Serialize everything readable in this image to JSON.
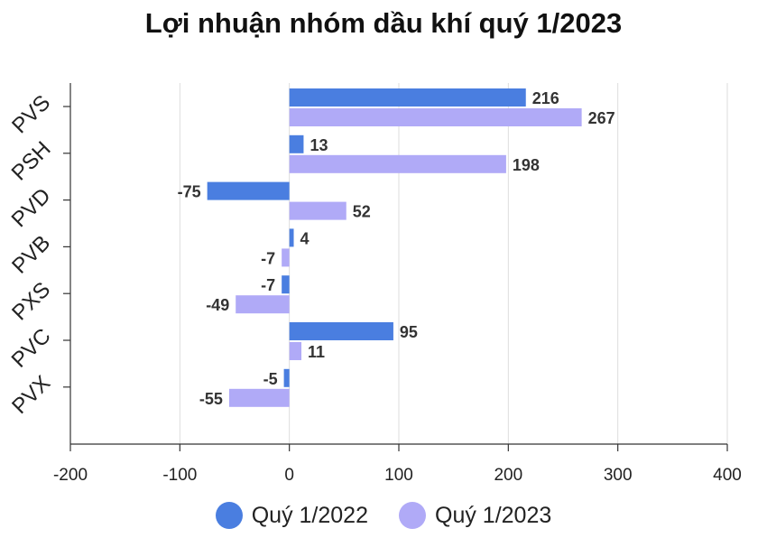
{
  "chart_data": {
    "type": "bar",
    "orientation": "horizontal",
    "title": "Lợi nhuận nhóm dầu khí quý 1/2023",
    "categories": [
      "PVS",
      "PSH",
      "PVD",
      "PVB",
      "PXS",
      "PVC",
      "PVX"
    ],
    "series": [
      {
        "name": "Quý 1/2022",
        "color": "#4a7ee0",
        "values": [
          216,
          13,
          -75,
          4,
          -7,
          95,
          -5
        ]
      },
      {
        "name": "Quý 1/2023",
        "color": "#b0aaf7",
        "values": [
          267,
          198,
          52,
          -7,
          -49,
          11,
          -55
        ]
      }
    ],
    "xlim": [
      -200,
      400
    ],
    "xticks": [
      -200,
      -100,
      0,
      100,
      200,
      300,
      400
    ],
    "grid": true,
    "legend_position": "bottom",
    "data_labels": true
  }
}
